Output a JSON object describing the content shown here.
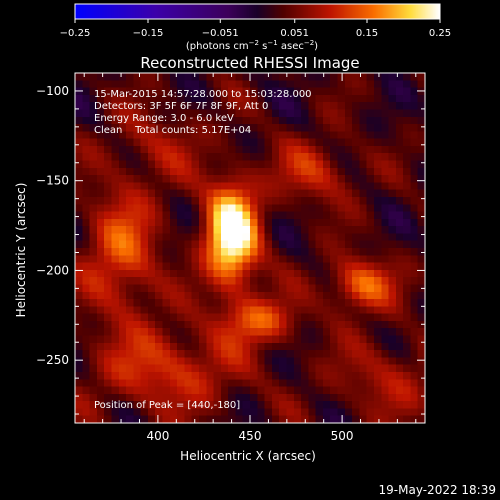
{
  "colorbar": {
    "ticks": [
      "-0.25",
      "-0.15",
      "-0.051",
      "0.051",
      "0.15",
      "0.25"
    ],
    "vmin": -0.25,
    "vmax": 0.25,
    "colormap": "blue-purple-red-yellow-white (RHESSI)"
  },
  "image": {
    "title": "Reconstructed RHESSI Image",
    "info_lines": [
      "15-Mar-2015 14:57:28.000 to 15:03:28.000",
      "Detectors: 3F 5F 6F 7F 8F 9F, Att 0",
      "Energy Range: 3.0 - 6.0 keV",
      "Clean    Total counts: 5.17E+04"
    ],
    "peak_text": "Position of Peak = [440,-180]",
    "footer_date": "19-May-2022 18:39"
  },
  "chart_data": {
    "type": "heatmap",
    "title": "Reconstructed RHESSI Image",
    "xlabel": "Heliocentric X (arcsec)",
    "ylabel": "Heliocentric Y (arcsec)",
    "colorbar_label": "photons cm^-2 s^-1 asec^-2",
    "x_ticks": [
      "400",
      "450",
      "500"
    ],
    "y_ticks": [
      "-100",
      "-150",
      "-200",
      "-250"
    ],
    "xlim": [
      355,
      545
    ],
    "ylim": [
      -285,
      -90
    ],
    "vlim": [
      -0.25,
      0.25
    ],
    "peak": {
      "x": 440,
      "y": -180,
      "value": 0.25
    },
    "sources": [
      {
        "x": 440,
        "y": -180,
        "amplitude": 0.25,
        "sx": 10,
        "sy": 20
      },
      {
        "x": 510,
        "y": -208,
        "amplitude": 0.13,
        "sx": 12,
        "sy": 10
      },
      {
        "x": 455,
        "y": -228,
        "amplitude": 0.11,
        "sx": 14,
        "sy": 9
      },
      {
        "x": 380,
        "y": -190,
        "amplitude": 0.11,
        "sx": 14,
        "sy": 25
      },
      {
        "x": 405,
        "y": -255,
        "amplitude": 0.09,
        "sx": 28,
        "sy": 16
      },
      {
        "x": 485,
        "y": -145,
        "amplitude": 0.08,
        "sx": 15,
        "sy": 12
      },
      {
        "x": 525,
        "y": -260,
        "amplitude": 0.06,
        "sx": 20,
        "sy": 15
      },
      {
        "x": 400,
        "y": -130,
        "amplitude": 0.05,
        "sx": 18,
        "sy": 15
      }
    ]
  }
}
